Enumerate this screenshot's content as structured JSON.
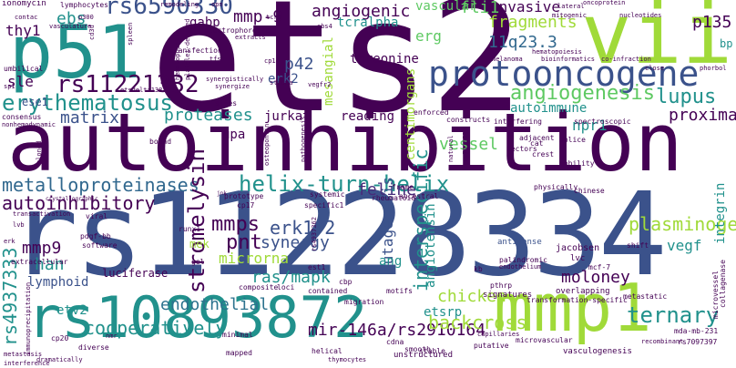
{
  "palette": {
    "dark_purple": "#440154",
    "blue": "#3b528b",
    "teal": "#21918c",
    "green": "#5ec962",
    "yellow_green": "#a0da39"
  },
  "words": {
    "ets2": "ets2",
    "autoinhibition": "autoinhibition",
    "rs11228334": "rs11228334",
    "rs10893872": "rs10893872",
    "p51": "p51",
    "vii": "vii",
    "mmp1": "mmp1",
    "protooncogene": "protooncogene",
    "rs6590330": "rs6590330",
    "rs11221332": "rs11221332",
    "erythematosus": "erythematosus",
    "metalloproteinases": "metalloproteinases",
    "autoinhibitory": "autoinhibitory",
    "rs4937333": "rs4937333",
    "angiogenesis": "angiogenesis",
    "helix_turn_helix": "helix-turn-helix",
    "stromelysin": "stromelysin",
    "endothelial": "endothelial",
    "cooperatively": "cooperatively",
    "mir146a": "mir-146a/rs2910164",
    "backcross": "backcross",
    "ternary": "ternary",
    "plasminogen": "plasminogen",
    "lupus": "lupus",
    "proteases": "proteases",
    "matrix": "matrix",
    "mmps": "mmps",
    "pnt": "pnt",
    "erk1_2": "erk1/2",
    "synergy": "synergy",
    "ras_mapk": "ras/mapk",
    "microrna": "microrna",
    "mmp9": "mmp9",
    "han": "han",
    "lymphoid": "lymphoid",
    "chicken": "chicken",
    "etsrp": "etsrp",
    "etv2": "etv2",
    "feline": "feline",
    "interspecific": "interspecific",
    "mutagenesis": "mutagenesis",
    "angiotensin": "angiotensin",
    "moloney": "moloney",
    "integrin": "integrin",
    "vegf": "vegf",
    "proximal": "proximal",
    "npr1": "npr1",
    "autoimmune": "autoimmune",
    "vessel": "vessel",
    "11q": "11q",
    "11q23_3": "11q23.3",
    "fragments": "fragments",
    "invasive": "invasive",
    "fli1": "fli1",
    "p135": "p135",
    "vascular": "vascular",
    "angiogenic": "angiogenic",
    "mmp_9": "mmp-9",
    "tcralpha": "tcralpha",
    "erg": "erg",
    "p42": "p42",
    "erk2": "erk2",
    "threonine": "threonine",
    "mesangial": "mesangial",
    "reading": "reading",
    "jurkat": "jurkat",
    "upa": "upa",
    "centimorgans": "centimorgans",
    "sle": "sle",
    "ese1": "ese1",
    "thy1": "thy1",
    "ebs": "ebs",
    "gabp": "gabp",
    "bp": "bp",
    "ang": "ang",
    "mek": "mek",
    "luciferase": "luciferase",
    "antisense": "antisense",
    "jacobsen": "jacobsen",
    "lvc": "lvc",
    "cbp": "cbp",
    "kb": "kb",
    "pthrp": "pthrp",
    "signatures": "signatures",
    "overlapping": "overlapping",
    "transformation_specific": "transformation-specific",
    "microvascular": "microvascular",
    "vasculogenesis": "vasculogenesis",
    "unstructured": "unstructured",
    "thymocytes": "thymocytes",
    "mda_mb_231": "mda-mb-231",
    "rs7097397": "rs7097397",
    "microvessel": "microvessel",
    "collagenase": "collagenase",
    "metastatic": "metastatic",
    "recombinant": "recombinant",
    "cdna": "cdna",
    "stable": "stable",
    "putative": "putative",
    "capillaries": "capillaries",
    "smooth": "smooth",
    "helical": "helical",
    "mapped": "mapped",
    "cp20": "cp20",
    "diverse": "diverse",
    "dramatically": "dramatically",
    "interference": "interference",
    "metastasis": "metastasis",
    "immunoprecipitation": "immunoprecipitation",
    "extracellular": "extracellular",
    "software": "software",
    "pdgf_bb": "pdgf-bb",
    "viral": "viral",
    "gel": "gel",
    "composite": "composite",
    "loci": "loci",
    "contained": "contained",
    "migration": "migration",
    "motifs": "motifs",
    "est1": "est1",
    "cp17": "cp17",
    "prototype": "prototype",
    "minimal": "minimal",
    "runx1": "runx1",
    "transfection": "transfection",
    "transactivation": "transactivation",
    "lvb": "lvb",
    "erk": "erk",
    "nmr": "nmr",
    "crystallographic": "crystallographic",
    "jnk": "jnk",
    "systemic": "systemic",
    "specific1": "specific1",
    "frame": "frame",
    "ancestral": "ancestral",
    "rheumatoid": "rheumatoid",
    "palindromic": "palindromic",
    "mcf_7": "mcf-7",
    "chinese": "chinese",
    "physically": "physically",
    "shift": "shift",
    "mobility": "mobility",
    "splice": "splice",
    "spectroscopic": "spectroscopic",
    "cat": "cat",
    "crest": "crest",
    "adjacent": "adjacent",
    "vectors": "vectors",
    "natural": "natural",
    "rs7013527": "rs7013527",
    "constructs": "constructs",
    "interfering": "interfering",
    "enforced": "enforced",
    "osteopontin": "osteopontin",
    "pathogenesis": "pathogenesis",
    "rs4937362": "rs4937362",
    "cloned": "cloned",
    "bound": "bound",
    "sites": "sites",
    "consensus": "consensus",
    "nonhemodynamic": "nonhemodynamic",
    "umbilical": "umbilical",
    "sp1": "sp1",
    "etsdelta138": "etsdelta138",
    "hematopoietic": "hematopoietic",
    "platelet_derived": "platelet-derived",
    "electrophoretic": "electrophoretic",
    "extracts": "extracts",
    "synergistically": "synergistically",
    "synergize": "synergize",
    "stroma": "stroma",
    "vegfr2": "vegfr2",
    "cp14": "cp14",
    "tfs": "tfs",
    "ebs4": "ebs4",
    "hematopoiesis": "hematopoiesis",
    "melanoma": "melanoma",
    "bioinformatics": "bioinformatics",
    "coinfraction": "co-infraction",
    "close": "close",
    "phorbol": "phorbol",
    "mitogenic": "mitogenic",
    "nucleotides": "nucleotides",
    "oncoprotein": "oncoprotein",
    "lateral": "lateral",
    "ionomycin": "ionomycin",
    "lymphocytes": "lymphocytes",
    "contac": "contac",
    "vasculature": "vasculature",
    "p300": "p300",
    "cd3d": "cd3d",
    "spleen": "spleen",
    "remodeling": "remodeling",
    "opn": "opn",
    "tcrb": "tcrb",
    "endothelium": "endothelium"
  }
}
